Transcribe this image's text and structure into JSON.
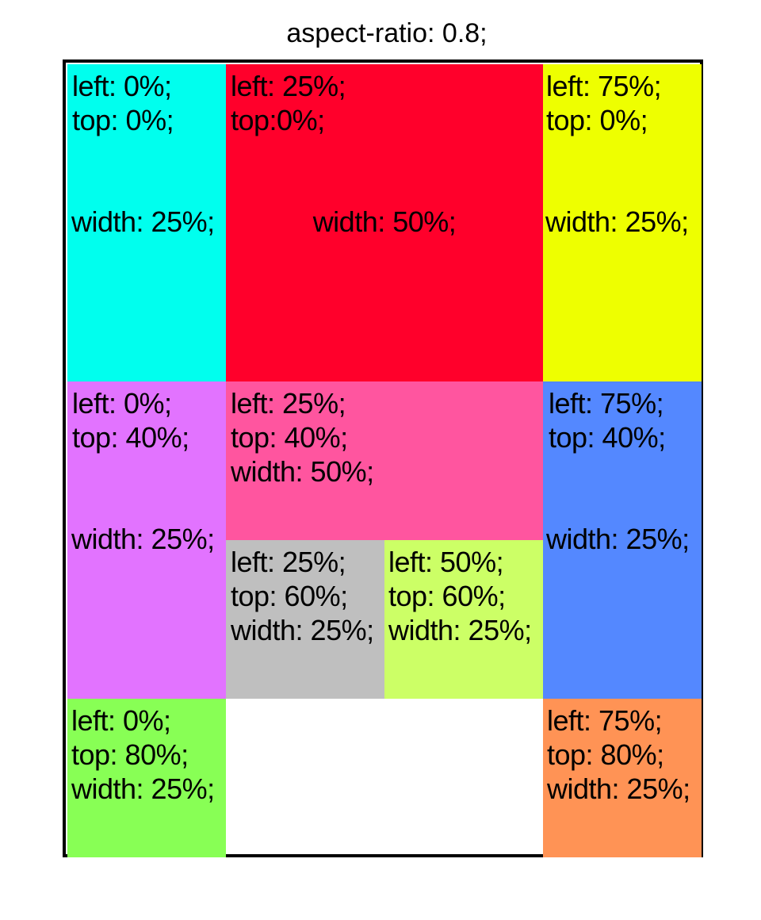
{
  "title": "aspect-ratio: 0.8;",
  "boxes": [
    {
      "name": "cyan",
      "color": "#00FFEE",
      "lines": [
        "left: 0%;",
        "top: 0%;",
        "width: 25%;"
      ]
    },
    {
      "name": "red",
      "color": "#FF002B",
      "lines": [
        "left: 25%;",
        "top:0%;",
        "width: 50%;"
      ]
    },
    {
      "name": "yellow",
      "color": "#EEFF00",
      "lines": [
        "left: 75%;",
        "top: 0%;",
        "width: 25%;"
      ]
    },
    {
      "name": "violet",
      "color": "#E273FF",
      "lines": [
        "left: 0%;",
        "top: 40%;",
        "width: 25%;"
      ]
    },
    {
      "name": "pink",
      "color": "#FF559F",
      "lines": [
        "left: 25%;",
        "top: 40%;",
        "width: 50%;"
      ]
    },
    {
      "name": "blue",
      "color": "#5488FF",
      "lines": [
        "left: 75%;",
        "top: 40%;",
        "width: 25%;"
      ]
    },
    {
      "name": "gray",
      "color": "#BFBFBF",
      "lines": [
        "left: 25%;",
        "top: 60%;",
        "width: 25%;"
      ]
    },
    {
      "name": "lime",
      "color": "#CCFF66",
      "lines": [
        "left: 50%;",
        "top: 60%;",
        "width: 25%;"
      ]
    },
    {
      "name": "green",
      "color": "#88FF55",
      "lines": [
        "left: 0%;",
        "top: 80%;",
        "width: 25%;"
      ]
    },
    {
      "name": "orange",
      "color": "#FF9355",
      "lines": [
        "left: 75%;",
        "top: 80%;",
        "width: 25%;"
      ]
    }
  ]
}
